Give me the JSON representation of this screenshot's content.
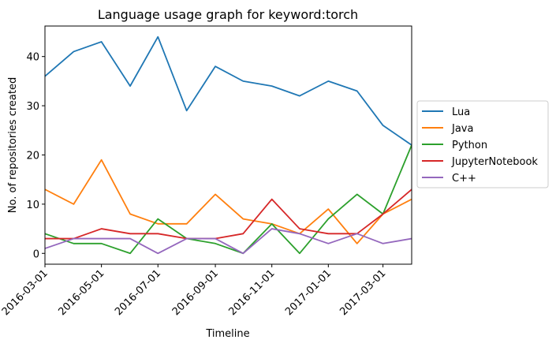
{
  "chart_data": {
    "type": "line",
    "title": "Language usage graph for keyword:torch",
    "xlabel": "Timeline",
    "ylabel": "No. of repositories created",
    "x": [
      "2016-03-01",
      "2016-04-01",
      "2016-05-01",
      "2016-06-01",
      "2016-07-01",
      "2016-08-01",
      "2016-09-01",
      "2016-10-01",
      "2016-11-01",
      "2016-12-01",
      "2017-01-01",
      "2017-02-01",
      "2017-03-01",
      "2017-04-01"
    ],
    "x_ticks": [
      "2016-03-01",
      "2016-05-01",
      "2016-07-01",
      "2016-09-01",
      "2016-11-01",
      "2017-01-01",
      "2017-03-01"
    ],
    "y_ticks": [
      0,
      10,
      20,
      30,
      40
    ],
    "xlim": [
      "2016-03-01",
      "2017-04-01"
    ],
    "ylim": [
      -2.2,
      46.2
    ],
    "legend_position": "center-right outside",
    "grid": false,
    "series": [
      {
        "name": "Lua",
        "color": "#1f77b4",
        "values": [
          36,
          41,
          43,
          34,
          44,
          29,
          38,
          35,
          34,
          32,
          35,
          33,
          26,
          22
        ]
      },
      {
        "name": "Java",
        "color": "#ff7f0e",
        "values": [
          13,
          10,
          19,
          8,
          6,
          6,
          12,
          7,
          6,
          4,
          9,
          2,
          8,
          11
        ]
      },
      {
        "name": "Python",
        "color": "#2ca02c",
        "values": [
          4,
          2,
          2,
          0,
          7,
          3,
          2,
          0,
          6,
          0,
          7,
          12,
          8,
          22
        ]
      },
      {
        "name": "JupyterNotebook",
        "color": "#d62728",
        "values": [
          3,
          3,
          5,
          4,
          4,
          3,
          3,
          4,
          11,
          5,
          4,
          4,
          8,
          13
        ]
      },
      {
        "name": "C++",
        "color": "#9467bd",
        "values": [
          1,
          3,
          3,
          3,
          0,
          3,
          3,
          0,
          5,
          4,
          2,
          4,
          2,
          3
        ]
      }
    ]
  }
}
